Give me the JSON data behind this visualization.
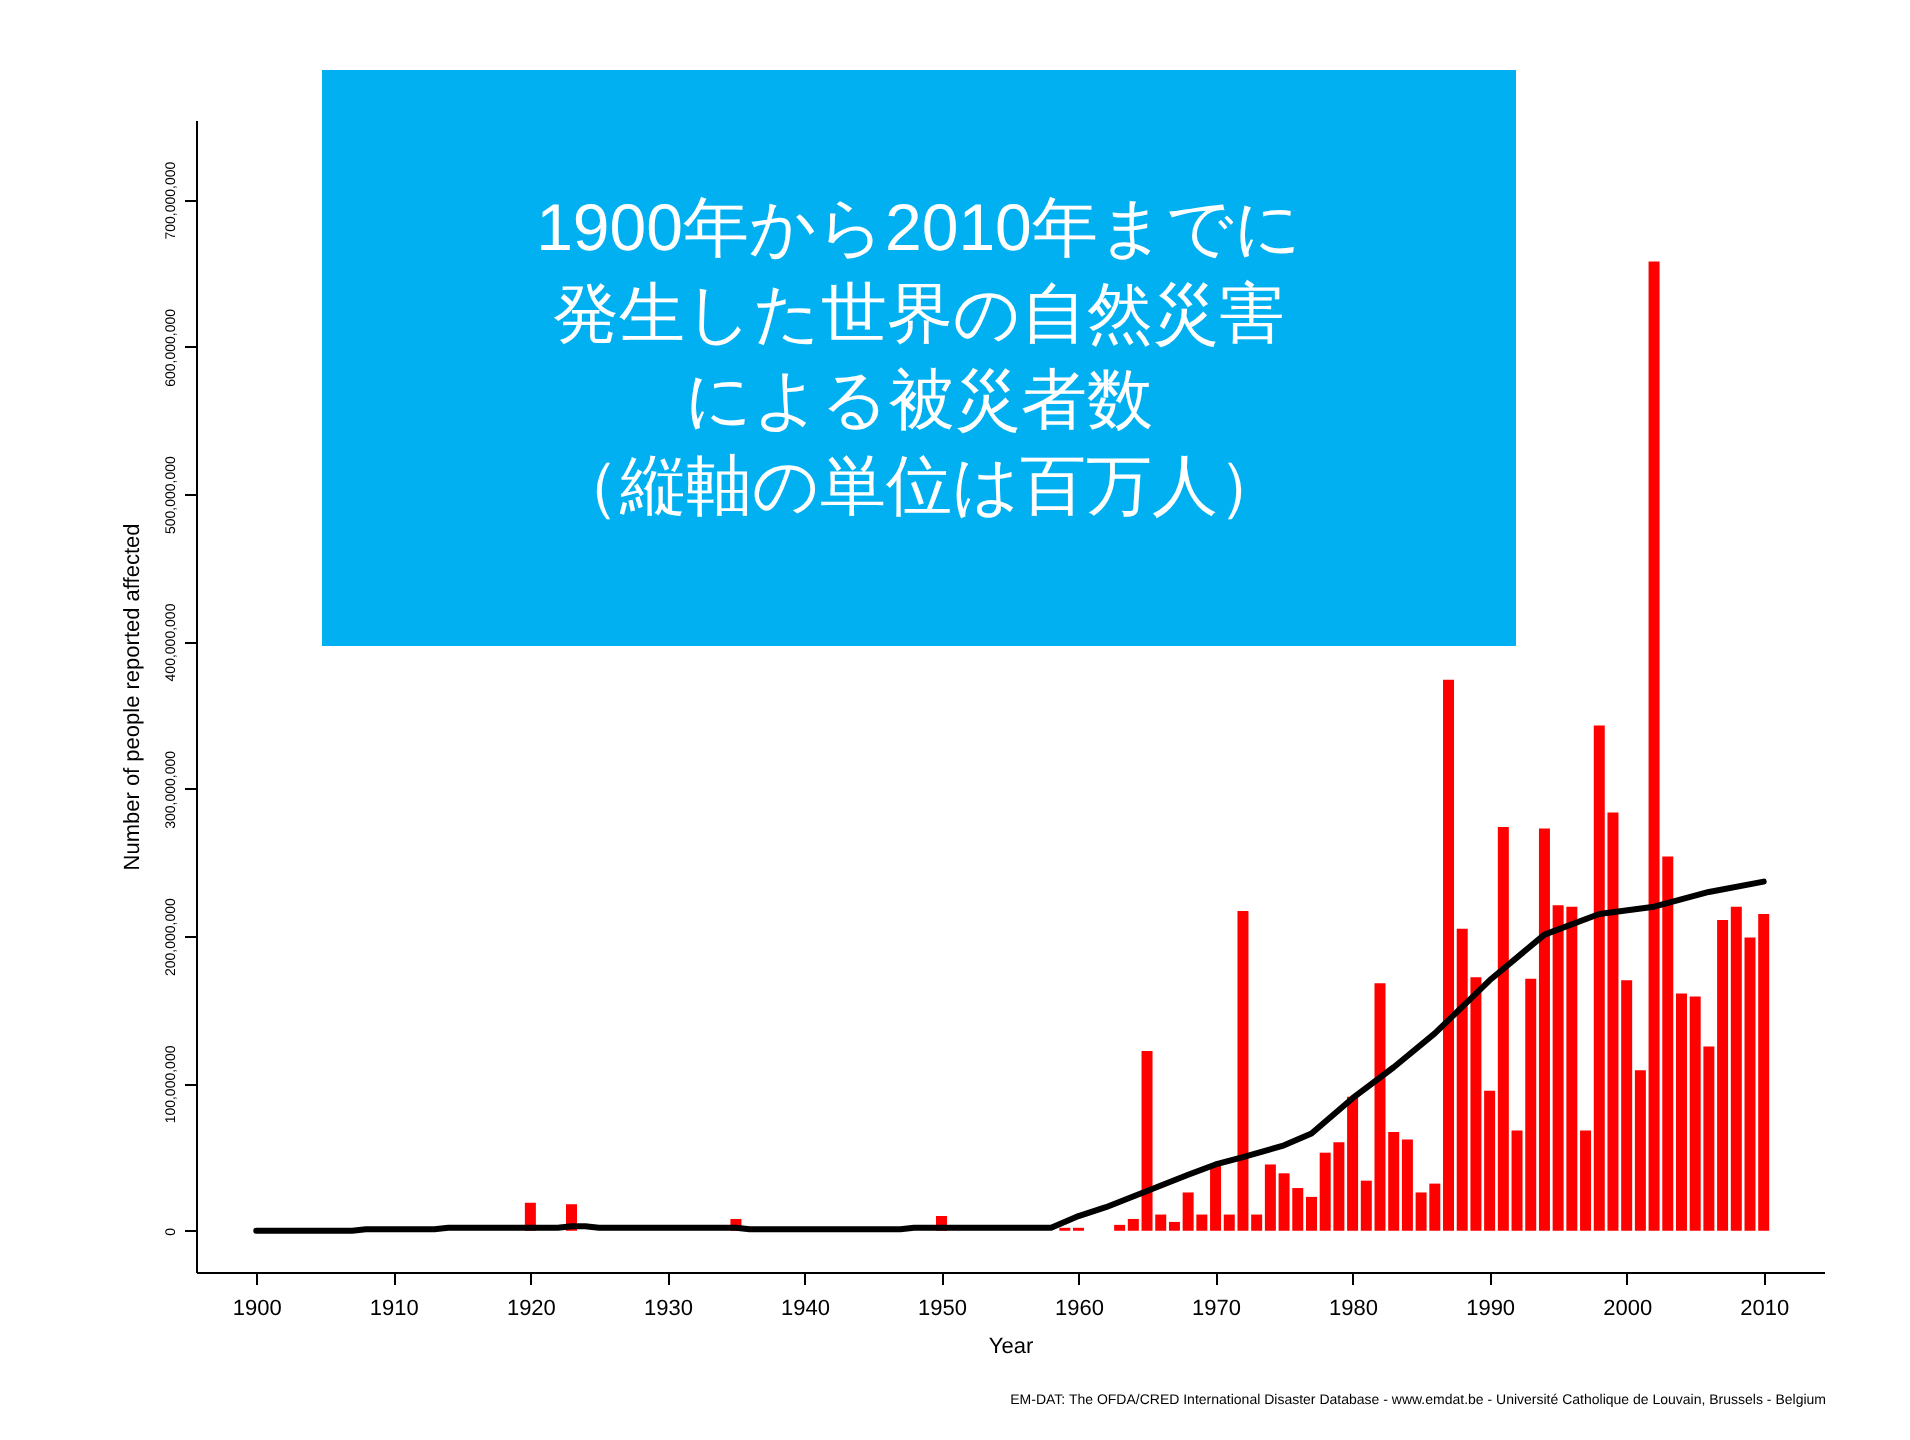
{
  "chart_data": {
    "type": "bar",
    "title": "1900年から2010年までに発生した世界の自然災害による被災者数",
    "subtitle": "（縦軸の単位は百万人）",
    "xlabel": "Year",
    "ylabel": "Number of people reported affected",
    "annotations": [
      "EM-DAT: The OFDA/CRED International Disaster Database - www.emdat.be - Université Catholique de Louvain, Brussels - Belgium"
    ],
    "xlim": [
      1895.6,
      2014.4
    ],
    "xticks": [
      1900,
      1910,
      1920,
      1930,
      1940,
      1950,
      1960,
      1970,
      1980,
      1990,
      2000,
      2010
    ],
    "ylim": [
      -28000000,
      754000000
    ],
    "yticks": [
      {
        "value": 0,
        "label": "0"
      },
      {
        "value": 100000000,
        "label": "100,000,000"
      },
      {
        "value": 200000000,
        "label": "200,000,000"
      },
      {
        "value": 300000000,
        "label": "300,000,000"
      },
      {
        "value": 400000000,
        "label": "400,000,000"
      },
      {
        "value": 500000000,
        "label": "500,000,000"
      },
      {
        "value": 600000000,
        "label": "600,000,000"
      },
      {
        "value": 700000000,
        "label": "700,000,000"
      }
    ],
    "grid": false,
    "series": [
      {
        "color": "#ff0000",
        "x": [
          1920,
          1923,
          1935,
          1950,
          1959,
          1960,
          1963,
          1964,
          1965,
          1966,
          1967,
          1968,
          1969,
          1970,
          1971,
          1972,
          1973,
          1974,
          1975,
          1976,
          1977,
          1978,
          1979,
          1980,
          1981,
          1982,
          1983,
          1984,
          1985,
          1986,
          1987,
          1988,
          1989,
          1990,
          1991,
          1992,
          1993,
          1994,
          1995,
          1996,
          1997,
          1998,
          1999,
          2000,
          2001,
          2002,
          2003,
          2004,
          2005,
          2006,
          2007,
          2008,
          2009,
          2010
        ],
        "values": [
          19000000,
          18000000,
          8000000,
          10000000,
          2000000,
          2000000,
          4000000,
          8000000,
          122000000,
          11000000,
          6000000,
          26000000,
          11000000,
          45000000,
          11000000,
          217000000,
          11000000,
          45000000,
          39000000,
          29000000,
          23000000,
          53000000,
          60000000,
          91000000,
          34000000,
          168000000,
          67000000,
          62000000,
          26000000,
          32000000,
          374000000,
          205000000,
          172000000,
          95000000,
          274000000,
          68000000,
          171000000,
          273000000,
          221000000,
          220000000,
          68000000,
          343000000,
          284000000,
          170000000,
          109000000,
          658000000,
          254000000,
          161000000,
          159000000,
          125000000,
          211000000,
          220000000,
          199000000,
          215000000
        ]
      },
      {
        "type": "line",
        "color": "#000000",
        "x": [
          1900,
          1907,
          1908,
          1913,
          1914,
          1922,
          1923,
          1924,
          1925,
          1935,
          1936,
          1947,
          1948,
          1958,
          1960,
          1962,
          1965,
          1968,
          1970,
          1972,
          1975,
          1977,
          1980,
          1983,
          1986,
          1988,
          1990,
          1994,
          1998,
          2002,
          2006,
          2010
        ],
        "values": [
          0,
          0,
          1000000,
          1000000,
          2000000,
          2000000,
          3000000,
          3000000,
          2000000,
          2000000,
          1000000,
          1000000,
          2000000,
          2000000,
          10000000,
          16000000,
          27000000,
          38000000,
          45000000,
          50000000,
          58000000,
          66000000,
          90000000,
          111000000,
          134000000,
          152000000,
          170000000,
          201000000,
          215000000,
          220000000,
          230000000,
          237000000
        ]
      }
    ]
  }
}
